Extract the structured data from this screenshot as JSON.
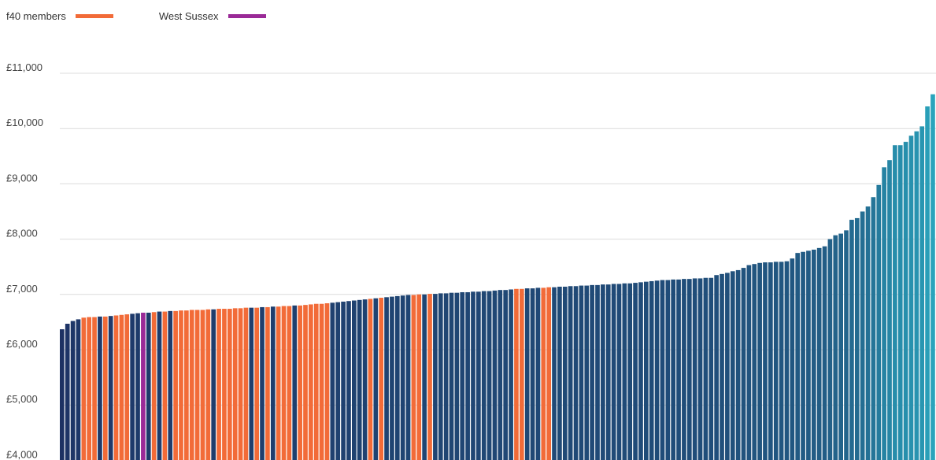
{
  "chart_data": {
    "type": "bar",
    "title": "",
    "xlabel": "",
    "ylabel": "",
    "ylim": [
      4000,
      11000
    ],
    "y_ticks": [
      {
        "value": 11000,
        "label": "£11,000"
      },
      {
        "value": 10000,
        "label": "£10,000"
      },
      {
        "value": 9000,
        "label": "£9,000"
      },
      {
        "value": 8000,
        "label": "£8,000"
      },
      {
        "value": 7000,
        "label": "£7,000"
      },
      {
        "value": 6000,
        "label": "£6,000"
      },
      {
        "value": 5000,
        "label": "£5,000"
      },
      {
        "value": 4000,
        "label": "£4,000"
      }
    ],
    "grid": true,
    "legend_position": "top-left",
    "legend": [
      {
        "label": "f40 members",
        "color": "#f26b38"
      },
      {
        "label": "West Sussex",
        "color": "#9a2a97"
      }
    ],
    "colors": {
      "default_low": "#1d2e61",
      "default_high": "#2aa6be",
      "f40": "#f26b38",
      "west_sussex": "#9a2a97"
    },
    "series": [
      {
        "values": [
          6370,
          6470,
          6520,
          6550,
          6580,
          6590,
          6590,
          6600,
          6600,
          6610,
          6620,
          6630,
          6640,
          6650,
          6660,
          6670,
          6670,
          6680,
          6690,
          6690,
          6700,
          6700,
          6710,
          6710,
          6720,
          6720,
          6720,
          6730,
          6730,
          6740,
          6740,
          6740,
          6750,
          6750,
          6760,
          6760,
          6760,
          6770,
          6770,
          6780,
          6780,
          6790,
          6790,
          6800,
          6800,
          6810,
          6820,
          6830,
          6830,
          6840,
          6850,
          6860,
          6870,
          6880,
          6890,
          6900,
          6910,
          6920,
          6930,
          6940,
          6950,
          6960,
          6970,
          6980,
          6990,
          6990,
          7000,
          7000,
          7010,
          7010,
          7020,
          7020,
          7030,
          7030,
          7040,
          7040,
          7050,
          7050,
          7060,
          7060,
          7070,
          7080,
          7080,
          7090,
          7100,
          7100,
          7110,
          7110,
          7120,
          7120,
          7130,
          7130,
          7140,
          7140,
          7150,
          7150,
          7160,
          7160,
          7170,
          7170,
          7180,
          7180,
          7190,
          7190,
          7200,
          7200,
          7210,
          7220,
          7230,
          7240,
          7250,
          7260,
          7260,
          7270,
          7270,
          7280,
          7280,
          7290,
          7290,
          7300,
          7300,
          7350,
          7370,
          7390,
          7420,
          7440,
          7480,
          7530,
          7550,
          7570,
          7580,
          7580,
          7590,
          7590,
          7600,
          7650,
          7750,
          7770,
          7790,
          7810,
          7840,
          7870,
          8000,
          8070,
          8100,
          8160,
          8350,
          8380,
          8500,
          8590,
          8760,
          8980,
          9300,
          9430,
          9700,
          9700,
          9760,
          9870,
          9950,
          10040,
          10400,
          10620
        ],
        "highlight": [
          "",
          "",
          "",
          "",
          "f40",
          "f40",
          "f40",
          "",
          "f40",
          "",
          "f40",
          "f40",
          "f40",
          "",
          "",
          "west_sussex",
          "",
          "f40",
          "",
          "f40",
          "",
          "f40",
          "f40",
          "f40",
          "f40",
          "f40",
          "f40",
          "f40",
          "",
          "f40",
          "f40",
          "f40",
          "f40",
          "f40",
          "f40",
          "",
          "f40",
          "",
          "f40",
          "",
          "f40",
          "f40",
          "f40",
          "",
          "f40",
          "f40",
          "f40",
          "f40",
          "f40",
          "f40",
          "",
          "",
          "",
          "",
          "",
          "",
          "",
          "f40",
          "",
          "f40",
          "",
          "",
          "",
          "",
          "",
          "f40",
          "f40",
          "",
          "f40",
          "",
          "",
          "",
          "",
          "",
          "",
          "",
          "",
          "",
          "",
          "",
          "",
          "",
          "",
          "",
          "f40",
          "f40",
          "",
          "",
          "",
          "f40",
          "f40",
          "",
          "",
          "",
          "",
          "",
          "",
          "",
          "",
          "",
          "",
          "",
          "",
          "",
          "",
          "",
          "",
          "",
          "",
          "",
          "",
          "",
          "",
          "",
          "",
          "",
          "",
          "",
          "",
          "",
          "",
          "",
          "",
          "",
          "",
          "",
          "",
          "",
          "",
          "",
          "",
          "",
          "",
          "",
          "",
          "",
          "",
          "",
          "",
          "",
          "",
          "",
          "",
          "",
          "",
          "",
          "",
          "",
          "",
          "",
          "",
          "",
          "",
          "",
          "",
          "",
          "",
          "",
          "",
          "",
          "",
          ""
        ]
      }
    ]
  }
}
